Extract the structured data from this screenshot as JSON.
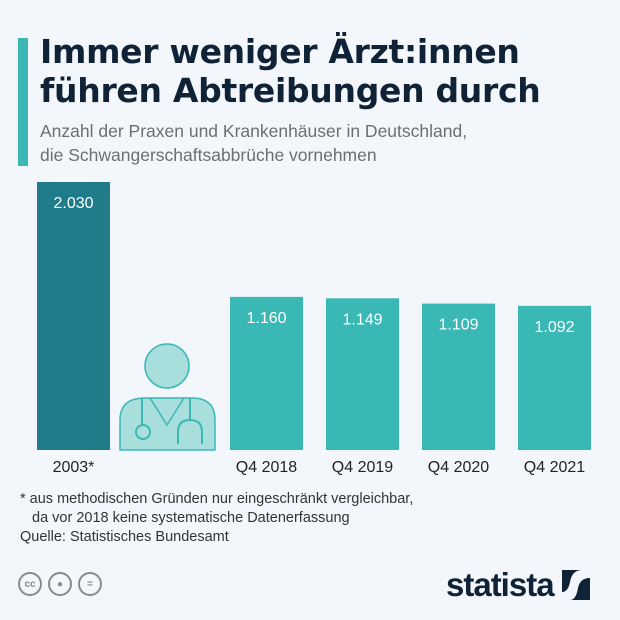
{
  "header": {
    "title_line1": "Immer weniger Ärzt:innen",
    "title_line2": "führen Abtreibungen durch",
    "subtitle_line1": "Anzahl der Praxen und Krankenhäuser in Deutschland,",
    "subtitle_line2": "die Schwangerschaftsabbrüche vornehmen"
  },
  "chart_data": {
    "type": "bar",
    "title": "Immer weniger Ärzt:innen führen Abtreibungen durch",
    "categories": [
      "2003*",
      "Q4 2018",
      "Q4 2019",
      "Q4 2020",
      "Q4 2021"
    ],
    "values": [
      2030,
      1160,
      1149,
      1109,
      1092
    ],
    "value_labels": [
      "2.030",
      "1.160",
      "1.149",
      "1.109",
      "1.092"
    ],
    "colors": [
      "#207b8b",
      "#3ab8b5",
      "#3ab8b5",
      "#3ab8b5",
      "#3ab8b5"
    ],
    "grid": false,
    "xlabel": "",
    "ylabel": ""
  },
  "footer": {
    "note_line1": "* aus methodischen Gründen nur eingeschränkt vergleichbar,",
    "note_line2": "da vor 2018 keine systematische Datenerfassung",
    "source": "Quelle: Statistisches Bundesamt",
    "cc_label": "cc",
    "brand": "statista"
  },
  "icons": [
    "doctor-icon",
    "cc-icon",
    "by-icon",
    "nd-icon",
    "statista-logo"
  ]
}
